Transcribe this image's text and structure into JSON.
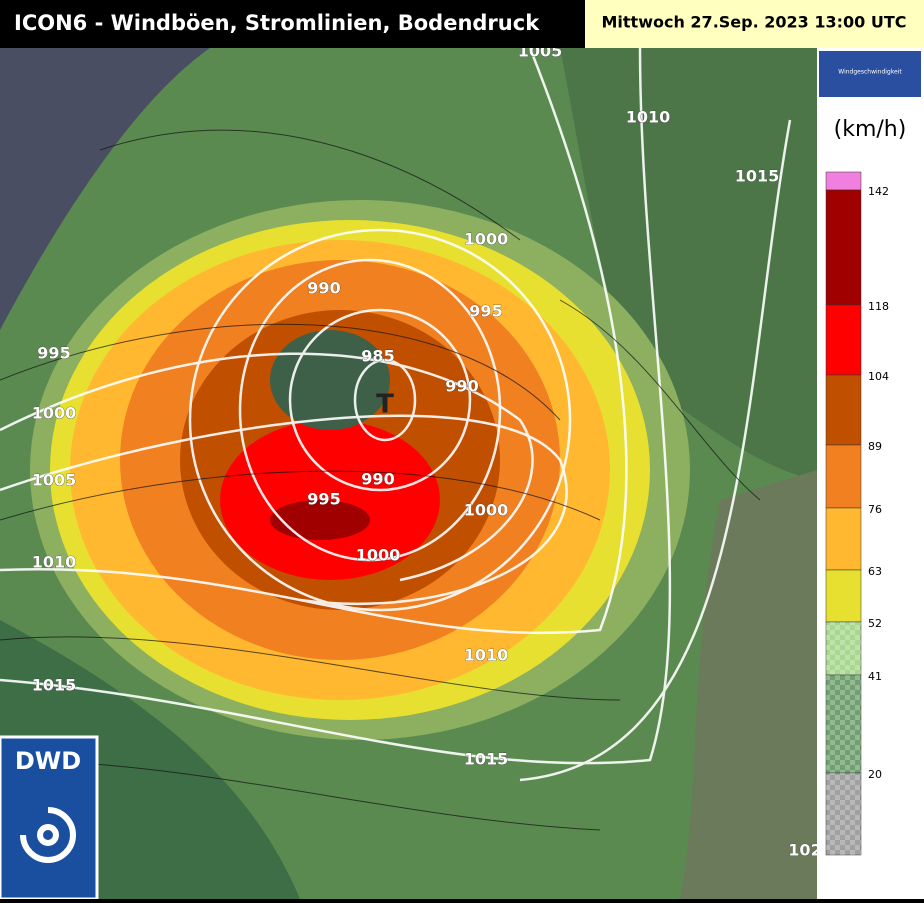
{
  "header": {
    "title": "ICON6 - Windböen, Stromlinien, Bodendruck",
    "valid_time": "Mittwoch 27.Sep. 2023 13:00 UTC"
  },
  "legend": {
    "title": "Windgeschwindigkeit",
    "unit": "(km/h)",
    "colors": [
      "#f080e0",
      "#a00000",
      "#ff0000",
      "#c05000",
      "#f08020",
      "#ffb830",
      "#e8e030",
      "#a8d890",
      "#70a070",
      "#a0a0a0"
    ],
    "labels": [
      "142",
      "118",
      "104",
      "89",
      "76",
      "63",
      "52",
      "41",
      "20"
    ]
  },
  "map": {
    "isobar_labels": [
      "1005",
      "1010",
      "1015",
      "1000",
      "990",
      "995",
      "995",
      "985",
      "990",
      "T",
      "1000",
      "1005",
      "990",
      "995",
      "1000",
      "1000",
      "1010",
      "1010",
      "1015",
      "1015",
      "102"
    ]
  },
  "logo": {
    "text": "DWD"
  }
}
